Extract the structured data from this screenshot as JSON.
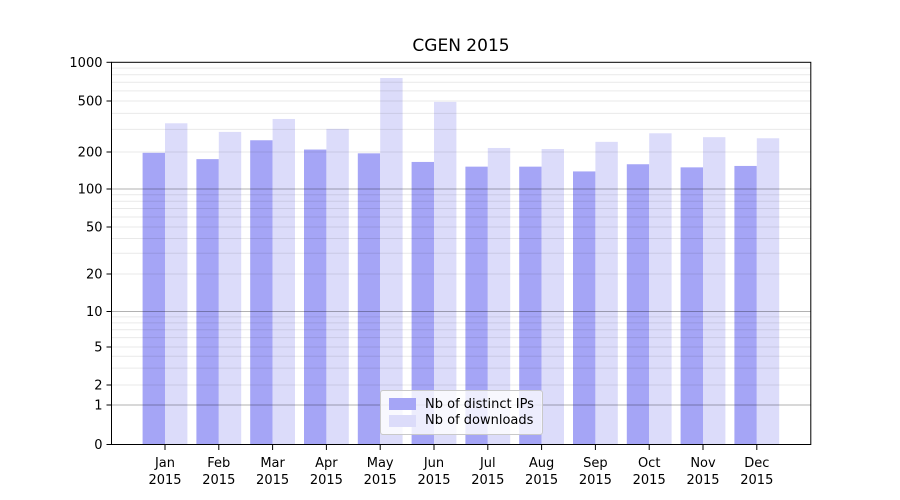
{
  "figure": {
    "background": "#ffffff",
    "spine_color": "#000000",
    "grid_minor_color": "#eaeaea",
    "grid_major_color": "#b3b3b3"
  },
  "chart_data": {
    "type": "bar",
    "title": "CGEN 2015",
    "xlabel": "",
    "ylabel": "",
    "yscale": "symlog",
    "ylim": [
      0,
      1000
    ],
    "grid": "horizontal, minor + major (majors at 1, 10, 100)",
    "categories": [
      "Jan 2015",
      "Feb 2015",
      "Mar 2015",
      "Apr 2015",
      "May 2015",
      "Jun 2015",
      "Jul 2015",
      "Aug 2015",
      "Sep 2015",
      "Oct 2015",
      "Nov 2015",
      "Dec 2015"
    ],
    "x_tick_labels": [
      [
        "Jan",
        "2015"
      ],
      [
        "Feb",
        "2015"
      ],
      [
        "Mar",
        "2015"
      ],
      [
        "Apr",
        "2015"
      ],
      [
        "May",
        "2015"
      ],
      [
        "Jun",
        "2015"
      ],
      [
        "Jul",
        "2015"
      ],
      [
        "Aug",
        "2015"
      ],
      [
        "Sep",
        "2015"
      ],
      [
        "Oct",
        "2015"
      ],
      [
        "Nov",
        "2015"
      ],
      [
        "Dec",
        "2015"
      ]
    ],
    "y_ticks": [
      0,
      1,
      2,
      5,
      10,
      20,
      50,
      100,
      200,
      500,
      1000
    ],
    "y_tick_labels": [
      "0",
      "1",
      "2",
      "5",
      "10",
      "20",
      "50",
      "100",
      "200",
      "500",
      "1000"
    ],
    "series": [
      {
        "name": "Nb of distinct IPs",
        "color": "#a5a5f6",
        "values": [
          197,
          175,
          247,
          209,
          195,
          166,
          152,
          152,
          139,
          159,
          150,
          154
        ]
      },
      {
        "name": "Nb of downloads",
        "color": "#dcdcfa",
        "values": [
          335,
          287,
          362,
          303,
          755,
          492,
          215,
          211,
          240,
          280,
          261,
          256
        ]
      }
    ],
    "legend": {
      "position": "lower center",
      "labels": [
        "Nb of distinct IPs",
        "Nb of downloads"
      ]
    }
  }
}
